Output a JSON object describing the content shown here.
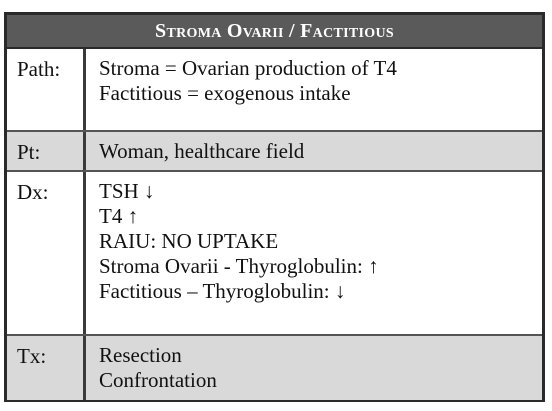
{
  "title": "Stroma Ovarii / Factitious",
  "rows": [
    {
      "label": "Path:",
      "lines": [
        "Stroma = Ovarian production of T4",
        "Factitious = exogenous intake"
      ]
    },
    {
      "label": "Pt:",
      "lines": [
        "Woman, healthcare field"
      ]
    },
    {
      "label": "Dx:",
      "lines": [
        "TSH ↓",
        "T4 ↑",
        "RAIU: NO UPTAKE",
        "Stroma Ovarii - Thyroglobulin: ↑",
        "Factitious – Thyroglobulin: ↓"
      ]
    },
    {
      "label": "Tx:",
      "lines": [
        "Resection",
        "Confrontation"
      ]
    }
  ],
  "colors": {
    "title_bg": "#5a5a5a",
    "shaded_row_bg": "#d9d9d9",
    "border": "#2a2a2a"
  }
}
